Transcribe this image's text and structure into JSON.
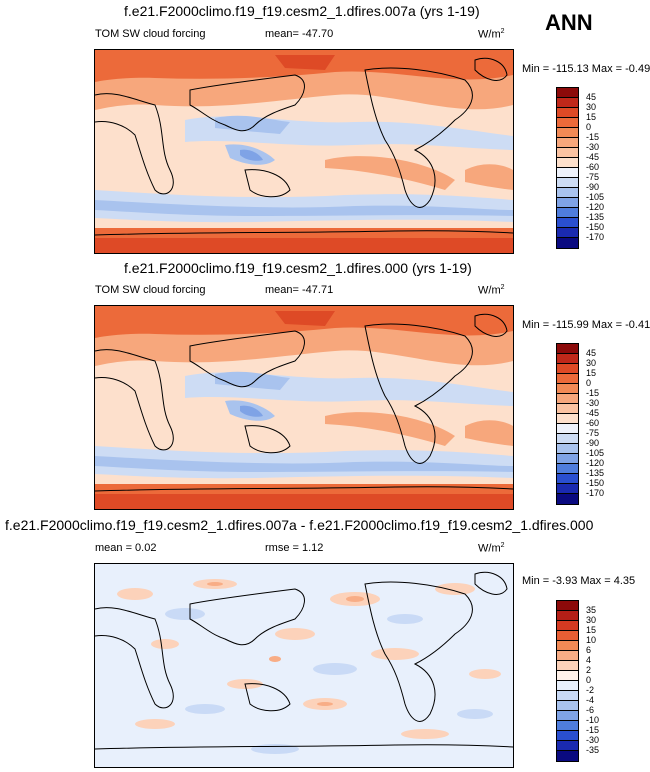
{
  "season": "ANN",
  "panels": [
    {
      "title": "f.e21.F2000climo.f19_f19.cesm2_1.dfires.007a (yrs 1-19)",
      "left_label": "TOM SW cloud forcing",
      "center_label": "mean=  -47.70",
      "units_base": "W/m",
      "units_exp": "2",
      "minmax": "Min = -115.13 Max =  -0.49",
      "kind": "abs",
      "levels": [
        "45",
        "30",
        "15",
        "0",
        "-15",
        "-30",
        "-45",
        "-60",
        "-75",
        "-90",
        "-105",
        "-120",
        "-135",
        "-150",
        "-170"
      ]
    },
    {
      "title": "f.e21.F2000climo.f19_f19.cesm2_1.dfires.000 (yrs 1-19)",
      "left_label": "TOM SW cloud forcing",
      "center_label": "mean=  -47.71",
      "units_base": "W/m",
      "units_exp": "2",
      "minmax": "Min = -115.99 Max =  -0.41",
      "kind": "abs",
      "levels": [
        "45",
        "30",
        "15",
        "0",
        "-15",
        "-30",
        "-45",
        "-60",
        "-75",
        "-90",
        "-105",
        "-120",
        "-135",
        "-150",
        "-170"
      ]
    },
    {
      "title": "f.e21.F2000climo.f19_f19.cesm2_1.dfires.007a - f.e21.F2000climo.f19_f19.cesm2_1.dfires.000",
      "left_label": "mean =   0.02",
      "center_label": "rmse =   1.12",
      "units_base": "W/m",
      "units_exp": "2",
      "minmax": "Min =  -3.93 Max =  4.35",
      "kind": "diff",
      "levels": [
        "35",
        "30",
        "15",
        "10",
        "6",
        "4",
        "2",
        "0",
        "-2",
        "-4",
        "-6",
        "-10",
        "-15",
        "-30",
        "-35"
      ]
    }
  ],
  "colors": {
    "abs_bins": [
      "#8c0a0a",
      "#c0281a",
      "#de4a26",
      "#ec6a3a",
      "#f28a56",
      "#f7a77c",
      "#fbc3a2",
      "#fde0cc",
      "#eef2fb",
      "#cddcf4",
      "#a9c3ee",
      "#7fa3e6",
      "#4f7ddd",
      "#2a4fd0",
      "#1a2ab0",
      "#0a0a80"
    ],
    "diff_bins": [
      "#8c0a0a",
      "#b41f17",
      "#d43a22",
      "#e85e34",
      "#f28a56",
      "#f8ad86",
      "#fcd2ba",
      "#fff2ea",
      "#e8f0fc",
      "#c9daf6",
      "#a9c3ee",
      "#7fa3e6",
      "#4f7ddd",
      "#2a4fd0",
      "#1a2ab0",
      "#0a0a80"
    ]
  },
  "chart_data": [
    {
      "type": "heatmap",
      "title": "f.e21.F2000climo.f19_f19.cesm2_1.dfires.007a (yrs 1-19)",
      "variable": "TOM SW cloud forcing",
      "units": "W/m2",
      "season": "ANN",
      "mean": -47.7,
      "min": -115.13,
      "max": -0.49,
      "contour_levels": [
        45,
        30,
        15,
        0,
        -15,
        -30,
        -45,
        -60,
        -75,
        -90,
        -105,
        -120,
        -135,
        -150,
        -170
      ],
      "projection": "global lat-lon, Pacific-centered"
    },
    {
      "type": "heatmap",
      "title": "f.e21.F2000climo.f19_f19.cesm2_1.dfires.000 (yrs 1-19)",
      "variable": "TOM SW cloud forcing",
      "units": "W/m2",
      "season": "ANN",
      "mean": -47.71,
      "min": -115.99,
      "max": -0.41,
      "contour_levels": [
        45,
        30,
        15,
        0,
        -15,
        -30,
        -45,
        -60,
        -75,
        -90,
        -105,
        -120,
        -135,
        -150,
        -170
      ],
      "projection": "global lat-lon, Pacific-centered"
    },
    {
      "type": "heatmap",
      "title": "f.e21.F2000climo.f19_f19.cesm2_1.dfires.007a - f.e21.F2000climo.f19_f19.cesm2_1.dfires.000",
      "units": "W/m2",
      "season": "ANN",
      "mean": 0.02,
      "rmse": 1.12,
      "min": -3.93,
      "max": 4.35,
      "contour_levels": [
        35,
        30,
        15,
        10,
        6,
        4,
        2,
        0,
        -2,
        -4,
        -6,
        -10,
        -15,
        -30,
        -35
      ],
      "projection": "global lat-lon, Pacific-centered"
    }
  ]
}
